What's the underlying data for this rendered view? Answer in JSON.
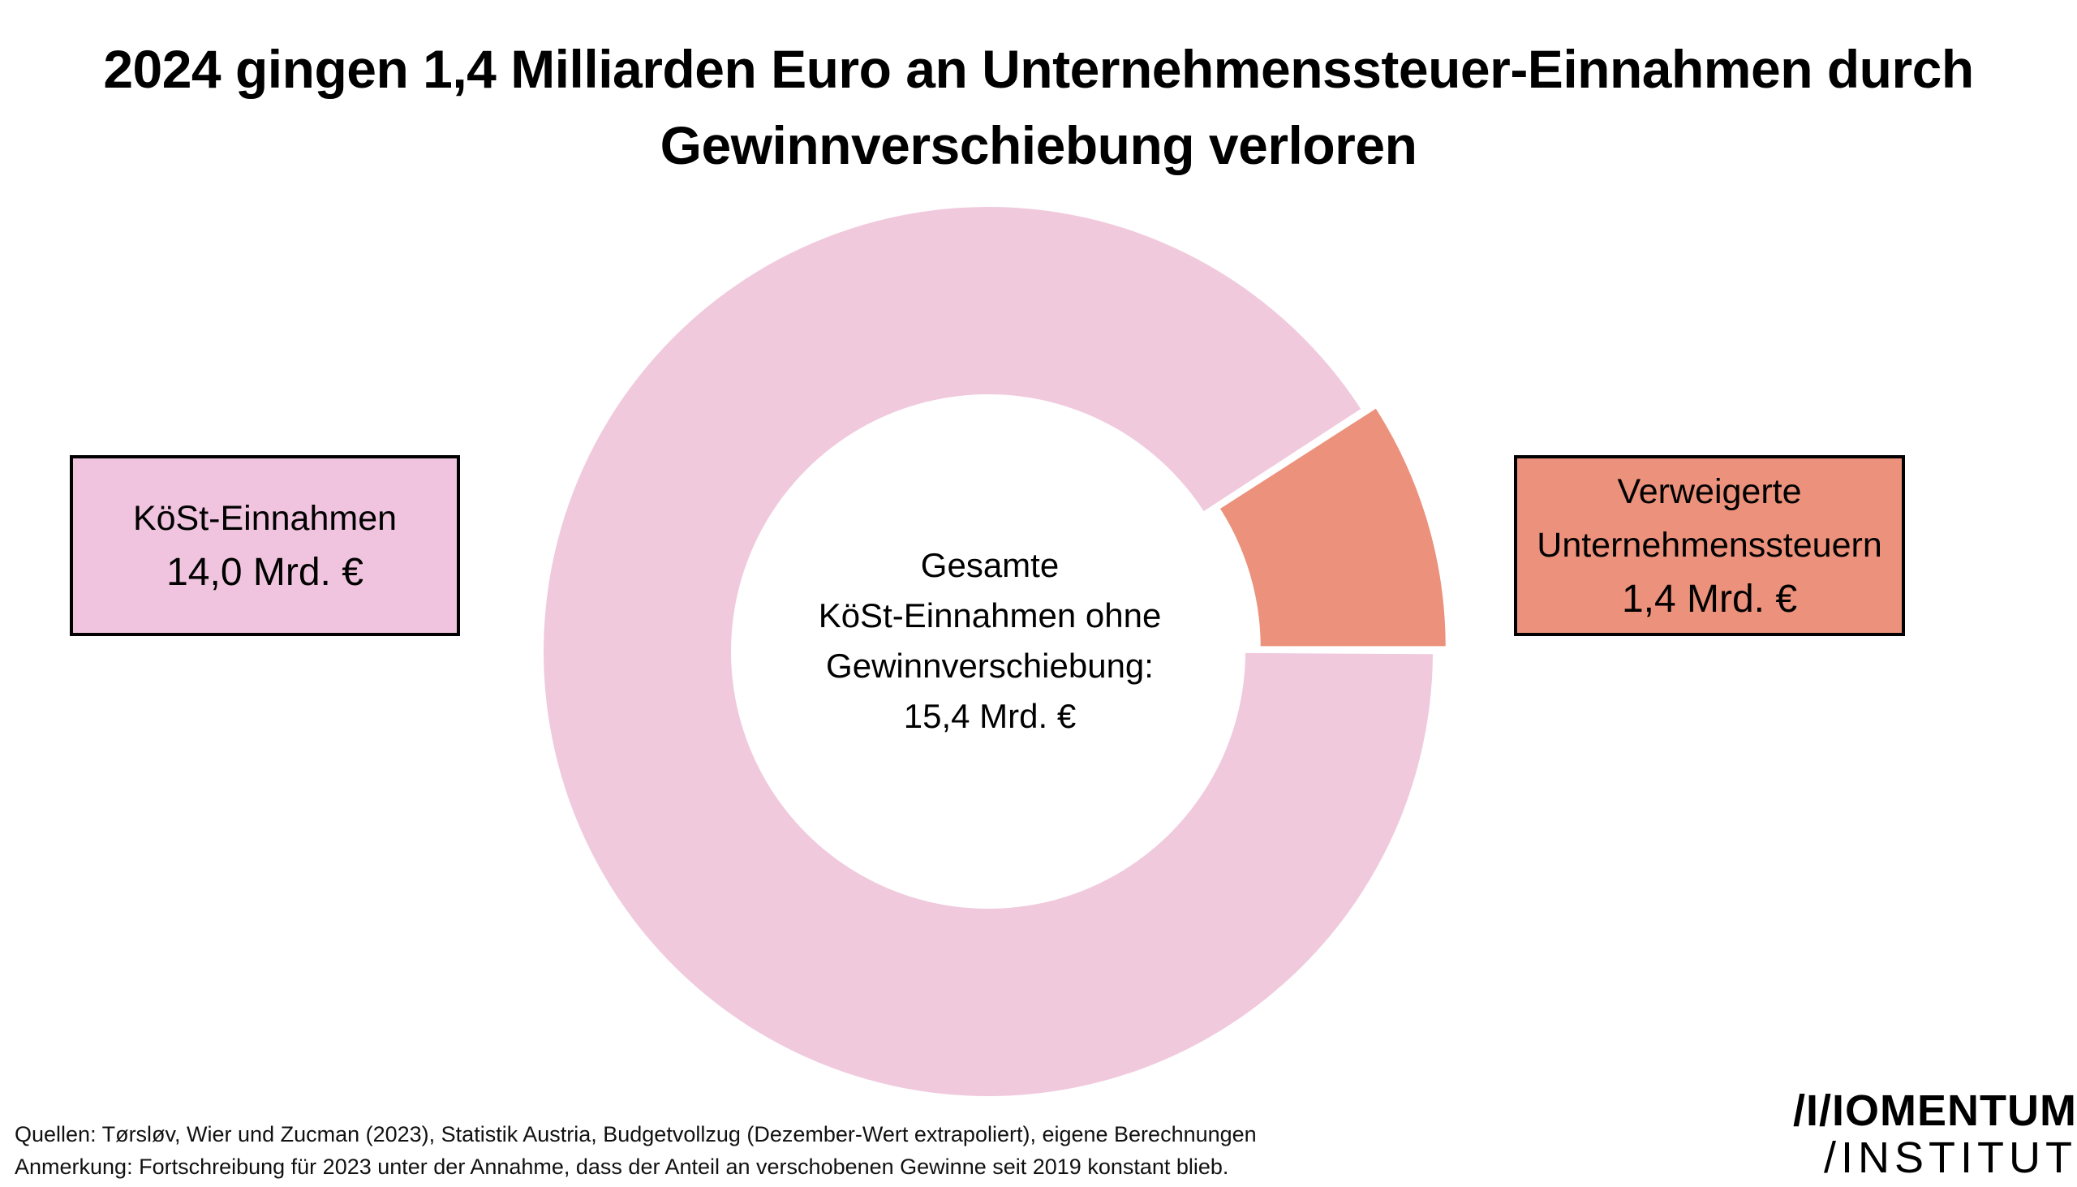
{
  "title": "2024 gingen 1,4 Milliarden Euro an Unternehmenssteuer-Einnahmen durch Gewinnverschiebung verloren",
  "chart_data": {
    "type": "pie",
    "style": "donut",
    "slices": [
      {
        "label": "KöSt-Einnahmen",
        "value": 14.0,
        "value_label": "14,0 Mrd. €",
        "color": "#f0c9dd",
        "exploded": false
      },
      {
        "label": "Verweigerte Unternehmenssteuern",
        "value": 1.4,
        "value_label": "1,4 Mrd. €",
        "color": "#ec917b",
        "exploded": true
      }
    ],
    "total": 15.4,
    "center_label": [
      "Gesamte",
      "KöSt-Einnahmen ohne",
      "Gewinnverschiebung:",
      "15,4 Mrd.  €"
    ]
  },
  "labels": {
    "left": {
      "line1": "KöSt-Einnahmen",
      "value": "14,0 Mrd. €",
      "color": "#f0c4de"
    },
    "right": {
      "line1": "Verweigerte",
      "line2": "Unternehmenssteuern",
      "value": "1,4 Mrd. €",
      "color": "#ec917b"
    }
  },
  "footer": {
    "sources": "Quellen: Tørsløv, Wier und Zucman (2023),  Statistik Austria, Budgetvollzug (Dezember-Wert extrapoliert), eigene Berechnungen",
    "note": "Anmerkung: Fortschreibung für 2023 unter der Annahme, dass der Anteil an verschobenen Gewinne seit 2019 konstant blieb."
  },
  "logo": {
    "line1": "/I/IOMENTUM",
    "line2": "/INSTITUT"
  }
}
